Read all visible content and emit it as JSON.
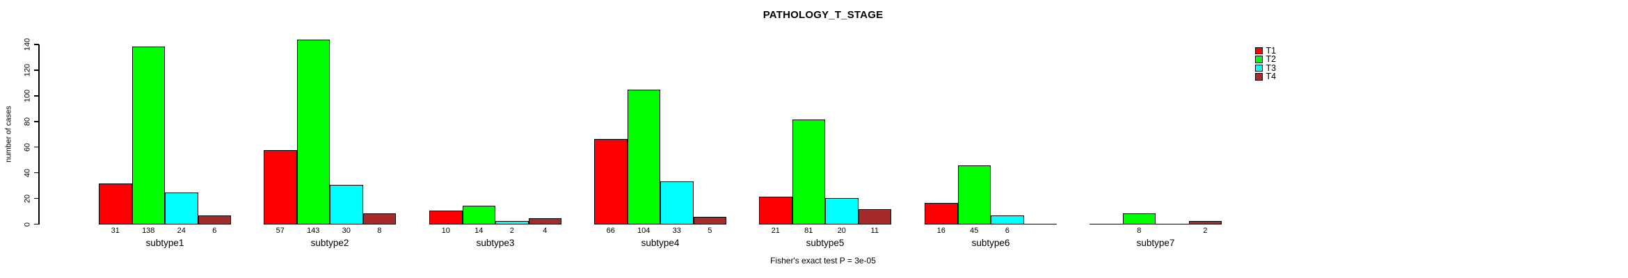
{
  "chart_data": {
    "type": "bar",
    "grouped": true,
    "title": "PATHOLOGY_T_STAGE",
    "xlabel": "",
    "ylabel": "number of cases",
    "ylim": [
      0,
      140
    ],
    "yticks": [
      0,
      20,
      40,
      60,
      80,
      100,
      120,
      140
    ],
    "grid": false,
    "legend_position": "right",
    "annotation": "Fisher's exact test P = 3e-05",
    "bar_value_labels": "counts shown below each bar; zero values are unlabeled",
    "categories": [
      "subtype1",
      "subtype2",
      "subtype3",
      "subtype4",
      "subtype5",
      "subtype6",
      "subtype7"
    ],
    "series": [
      {
        "name": "T1",
        "color": "#FF0000",
        "values": [
          31,
          57,
          10,
          66,
          21,
          16,
          0
        ]
      },
      {
        "name": "T2",
        "color": "#00FF00",
        "values": [
          138,
          143,
          14,
          104,
          81,
          45,
          8
        ]
      },
      {
        "name": "T3",
        "color": "#00FFFF",
        "values": [
          24,
          30,
          2,
          33,
          20,
          6,
          0
        ]
      },
      {
        "name": "T4",
        "color": "#A52A2A",
        "values": [
          6,
          8,
          4,
          5,
          11,
          0,
          2
        ]
      }
    ]
  }
}
